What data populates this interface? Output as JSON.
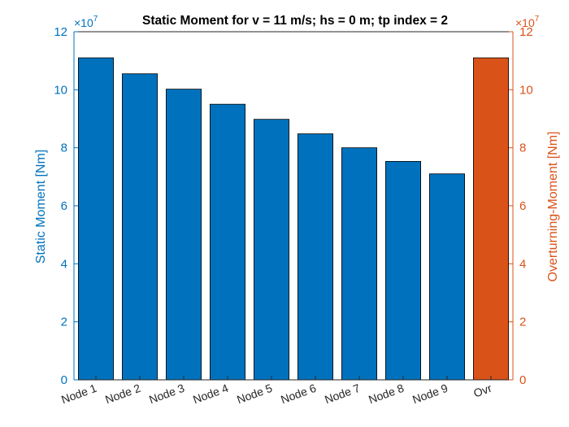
{
  "colors": {
    "left_axis": "#0072BD",
    "right_axis": "#D95319",
    "bar_left": "#0072BD",
    "bar_right": "#D95319",
    "x_axis": "#262626"
  },
  "chart_data": {
    "type": "bar",
    "title": "Static Moment for v = 11 m/s; hs = 0 m; tp index = 2",
    "categories": [
      "Node 1",
      "Node 2",
      "Node 3",
      "Node 4",
      "Node 5",
      "Node 6",
      "Node 7",
      "Node 8",
      "Node 9",
      "Ovr"
    ],
    "values": [
      111000000,
      105500000,
      100200000,
      95000000,
      89800000,
      84800000,
      80000000,
      75300000,
      71000000,
      111000000
    ],
    "bar_axis": [
      "left",
      "left",
      "left",
      "left",
      "left",
      "left",
      "left",
      "left",
      "left",
      "right"
    ],
    "ylabel_left": "Static Moment [Nm]",
    "ylabel_right": "Overturning-Moment [Nm]",
    "ylim": [
      0,
      120000000
    ],
    "yticks": [
      0,
      2,
      4,
      6,
      8,
      10,
      12
    ],
    "exponent_label": "×10",
    "exponent_power": "7",
    "grid": false
  }
}
